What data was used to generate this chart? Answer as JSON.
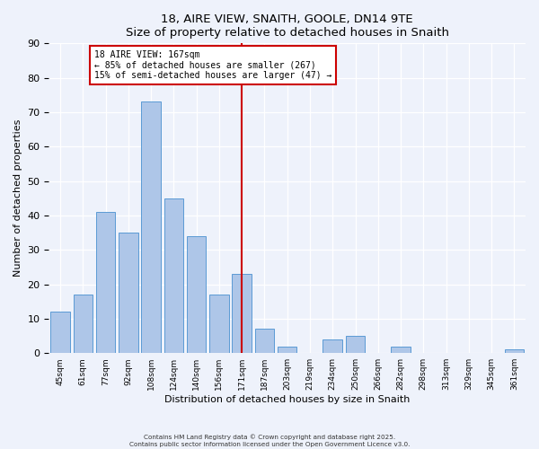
{
  "title": "18, AIRE VIEW, SNAITH, GOOLE, DN14 9TE",
  "subtitle": "Size of property relative to detached houses in Snaith",
  "xlabel": "Distribution of detached houses by size in Snaith",
  "ylabel": "Number of detached properties",
  "bin_labels": [
    "45sqm",
    "61sqm",
    "77sqm",
    "92sqm",
    "108sqm",
    "124sqm",
    "140sqm",
    "156sqm",
    "171sqm",
    "187sqm",
    "203sqm",
    "219sqm",
    "234sqm",
    "250sqm",
    "266sqm",
    "282sqm",
    "298sqm",
    "313sqm",
    "329sqm",
    "345sqm",
    "361sqm"
  ],
  "bar_heights": [
    12,
    17,
    41,
    35,
    73,
    45,
    34,
    17,
    23,
    7,
    2,
    0,
    4,
    5,
    0,
    2,
    0,
    0,
    0,
    0,
    1
  ],
  "bar_color": "#aec6e8",
  "bar_edge_color": "#5b9bd5",
  "ylim": [
    0,
    90
  ],
  "yticks": [
    0,
    10,
    20,
    30,
    40,
    50,
    60,
    70,
    80,
    90
  ],
  "vline_idx": 8,
  "vline_color": "#cc0000",
  "annotation_title": "18 AIRE VIEW: 167sqm",
  "annotation_line1": "← 85% of detached houses are smaller (267)",
  "annotation_line2": "15% of semi-detached houses are larger (47) →",
  "annotation_box_color": "#cc0000",
  "bg_color": "#eef2fb",
  "footnote1": "Contains HM Land Registry data © Crown copyright and database right 2025.",
  "footnote2": "Contains public sector information licensed under the Open Government Licence v3.0."
}
